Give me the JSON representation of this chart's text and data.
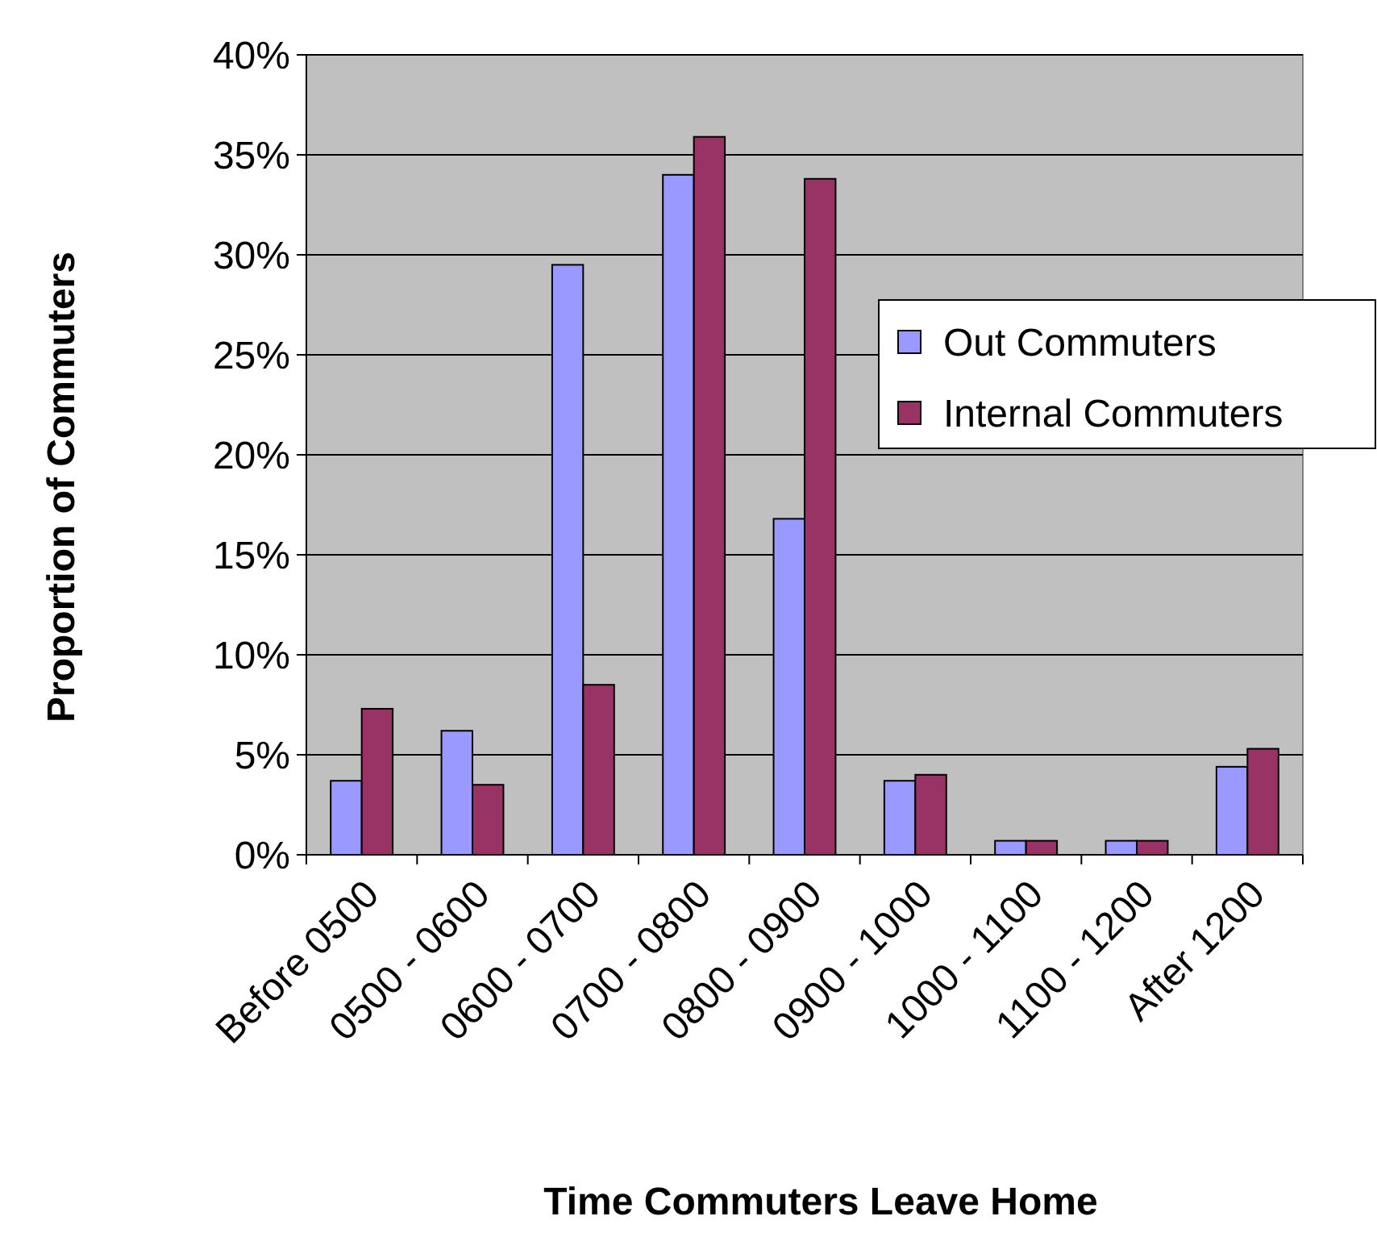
{
  "chart_data": {
    "type": "bar",
    "xlabel": "Time Commuters Leave Home",
    "ylabel": "Proportion of Commuters",
    "categories": [
      "Before 0500",
      "0500 - 0600",
      "0600 - 0700",
      "0700 - 0800",
      "0800 - 0900",
      "0900 - 1000",
      "1000 - 1100",
      "1100 - 1200",
      "After 1200"
    ],
    "series": [
      {
        "name": "Out Commuters",
        "color": "#9999ff",
        "values": [
          3.7,
          6.2,
          29.5,
          34.0,
          16.8,
          3.7,
          0.7,
          0.7,
          4.4
        ]
      },
      {
        "name": "Internal Commuters",
        "color": "#993366",
        "values": [
          7.3,
          3.5,
          8.5,
          35.9,
          33.8,
          4.0,
          0.7,
          0.7,
          5.3
        ]
      }
    ],
    "ylim": [
      0,
      40
    ],
    "yticks": [
      {
        "value": 0,
        "label": "0%"
      },
      {
        "value": 5,
        "label": "5%"
      },
      {
        "value": 10,
        "label": "10%"
      },
      {
        "value": 15,
        "label": "15%"
      },
      {
        "value": 20,
        "label": "20%"
      },
      {
        "value": 25,
        "label": "25%"
      },
      {
        "value": 30,
        "label": "30%"
      },
      {
        "value": 35,
        "label": "35%"
      },
      {
        "value": 40,
        "label": "40%"
      }
    ],
    "grid": "y",
    "legend": "right"
  }
}
